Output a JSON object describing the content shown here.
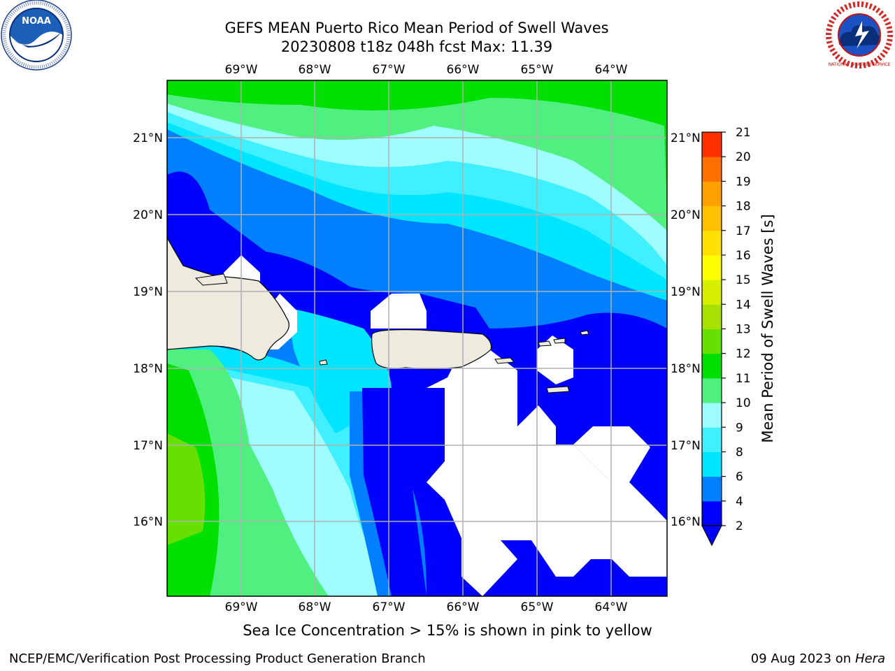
{
  "title": {
    "line1": "GEFS MEAN Puerto Rico Mean Period of Swell Waves",
    "line2": "20230808 t18z 048h fcst   Max: 11.39"
  },
  "axes": {
    "lon_labels": [
      "69°W",
      "68°W",
      "67°W",
      "66°W",
      "65°W",
      "64°W"
    ],
    "lat_labels": [
      "21°N",
      "20°N",
      "19°N",
      "18°N",
      "17°N",
      "16°N"
    ]
  },
  "colorbar": {
    "label": "Mean Period of Swell Waves [s]",
    "ticks": [
      "2",
      "4",
      "6",
      "8",
      "9",
      "10",
      "11",
      "12",
      "13",
      "14",
      "15",
      "16",
      "17",
      "18",
      "19",
      "20",
      "21"
    ],
    "colors": [
      "#0000ff",
      "#0080ff",
      "#00e5ff",
      "#40f0ff",
      "#9ffcff",
      "#50f080",
      "#00e000",
      "#66e000",
      "#a8e000",
      "#d8f000",
      "#ffff00",
      "#ffe000",
      "#ffc000",
      "#ffa000",
      "#ff7000",
      "#ff3000",
      "#ff0000"
    ],
    "under_color": "#0000ff"
  },
  "palette": {
    "land": "#ecebdd",
    "ice_mask": "#ffffff",
    "grid": "#b0b0b0",
    "coast": "#000000"
  },
  "caption": "Sea Ice Concentration > 15% is shown in pink to yellow",
  "footer": {
    "left": "NCEP/EMC/Verification Post Processing Product Generation Branch",
    "date": "09 Aug 2023 on",
    "host": "Hera"
  },
  "logos": {
    "noaa": "NOAA",
    "nws": "NATIONAL WEATHER SERVICE"
  }
}
